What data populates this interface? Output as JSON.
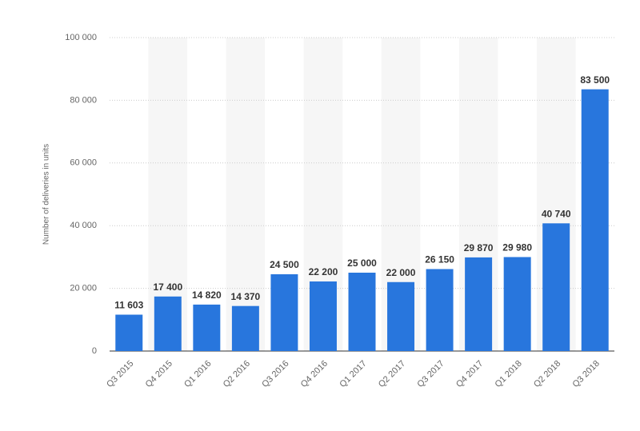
{
  "chart_data": {
    "type": "bar",
    "y_label": "Number of deliveries in units",
    "categories": [
      "Q3 2015",
      "Q4 2015",
      "Q1 2016",
      "Q2 2016",
      "Q3 2016",
      "Q4 2016",
      "Q1 2017",
      "Q2 2017",
      "Q3 2017",
      "Q4 2017",
      "Q1 2018",
      "Q2 2018",
      "Q3 2018"
    ],
    "values": [
      11603,
      17400,
      14820,
      14370,
      24500,
      22200,
      25000,
      22000,
      26150,
      29870,
      29980,
      40740,
      83500
    ],
    "value_labels": [
      "11 603",
      "17 400",
      "14 820",
      "14 370",
      "24 500",
      "22 200",
      "25 000",
      "22 000",
      "26 150",
      "29 870",
      "29 980",
      "40 740",
      "83 500"
    ],
    "color": "#2876dd",
    "ylim": [
      0,
      100000
    ],
    "yticks": [
      0,
      {
        "value": 20000,
        "label": "20 000"
      },
      {
        "value": 40000,
        "label": "40 000"
      },
      {
        "value": 60000,
        "label": "60 000"
      },
      {
        "value": 80000,
        "label": "80 000"
      },
      {
        "value": 100000,
        "label": "100 000"
      }
    ],
    "grid": true
  }
}
